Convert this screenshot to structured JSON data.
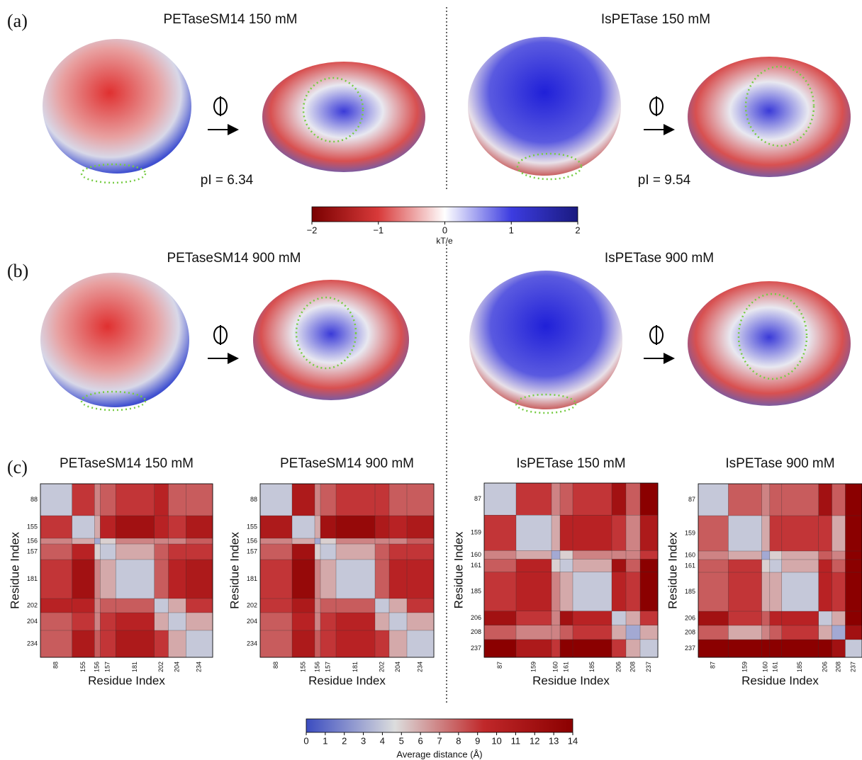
{
  "panels": [
    {
      "label": "(a)",
      "left_title": "PETaseSM14 150 mM",
      "right_title": "IsPETase 150 mM",
      "left_pi": "pI = 6.34",
      "right_pi": "pI = 9.54"
    },
    {
      "label": "(b)",
      "left_title": "PETaseSM14 900 mM",
      "right_title": "IsPETase 900 mM"
    }
  ],
  "electrostatic_colorbar": {
    "label": "kT/e",
    "lim": [
      -2,
      2
    ],
    "ticks": [
      {
        "value": -2,
        "label": "−2"
      },
      {
        "value": -1,
        "label": "−1"
      },
      0,
      1,
      2
    ],
    "colors": [
      "#7a0000",
      "#d83a3a",
      "#ffffff",
      "#3c3ce0",
      "#1a1a80"
    ]
  },
  "heatmaps": {
    "label": "(c)",
    "x_label": "Residue Index",
    "y_label": "Residue Index",
    "maps": [
      {
        "title": "PETaseSM14 150 mM",
        "residues": [
          88,
          155,
          156,
          157,
          181,
          202,
          204,
          234
        ],
        "values": [
          [
            4,
            9,
            7,
            8,
            9,
            10,
            8,
            8
          ],
          [
            9,
            4,
            6,
            10,
            12,
            10,
            9,
            11
          ],
          [
            7,
            6,
            3,
            5,
            7,
            7,
            7,
            8
          ],
          [
            8,
            10,
            5,
            4,
            6,
            8,
            9,
            9
          ],
          [
            9,
            12,
            7,
            6,
            4,
            8,
            10,
            11
          ],
          [
            10,
            10,
            7,
            8,
            8,
            4,
            6,
            9
          ],
          [
            8,
            9,
            7,
            9,
            10,
            6,
            4,
            6
          ],
          [
            8,
            11,
            8,
            9,
            11,
            9,
            6,
            4
          ]
        ]
      },
      {
        "title": "PETaseSM14 900 mM",
        "residues": [
          88,
          155,
          156,
          157,
          181,
          202,
          204,
          234
        ],
        "values": [
          [
            4,
            11,
            7,
            8,
            9,
            9,
            8,
            8
          ],
          [
            11,
            4,
            6,
            12,
            13,
            11,
            10,
            11
          ],
          [
            7,
            6,
            3,
            5,
            7,
            7,
            7,
            8
          ],
          [
            8,
            12,
            5,
            4,
            6,
            8,
            9,
            9
          ],
          [
            9,
            13,
            7,
            6,
            4,
            8,
            10,
            10
          ],
          [
            9,
            11,
            7,
            8,
            8,
            4,
            6,
            9
          ],
          [
            8,
            10,
            7,
            9,
            10,
            6,
            4,
            6
          ],
          [
            8,
            11,
            8,
            9,
            10,
            9,
            6,
            4
          ]
        ]
      },
      {
        "title": "IsPETase 150 mM",
        "residues": [
          87,
          159,
          160,
          161,
          185,
          206,
          208,
          237
        ],
        "values": [
          [
            4,
            9,
            7,
            8,
            9,
            12,
            8,
            14
          ],
          [
            9,
            4,
            6,
            10,
            10,
            9,
            7,
            11
          ],
          [
            7,
            6,
            3,
            5,
            7,
            7,
            7,
            9
          ],
          [
            8,
            10,
            5,
            4,
            6,
            12,
            8,
            14
          ],
          [
            9,
            10,
            7,
            6,
            4,
            10,
            9,
            14
          ],
          [
            12,
            9,
            7,
            12,
            10,
            4,
            6,
            9
          ],
          [
            8,
            7,
            7,
            8,
            9,
            6,
            3,
            6
          ],
          [
            14,
            11,
            9,
            14,
            14,
            9,
            6,
            4
          ]
        ]
      },
      {
        "title": "IsPETase 900 mM",
        "residues": [
          87,
          159,
          160,
          161,
          185,
          206,
          208,
          237
        ],
        "values": [
          [
            4,
            8,
            7,
            8,
            8,
            12,
            8,
            14
          ],
          [
            8,
            4,
            6,
            9,
            9,
            9,
            6,
            14
          ],
          [
            7,
            6,
            3,
            5,
            6,
            8,
            7,
            14
          ],
          [
            8,
            9,
            5,
            4,
            6,
            10,
            8,
            14
          ],
          [
            8,
            9,
            6,
            6,
            4,
            10,
            9,
            14
          ],
          [
            12,
            9,
            8,
            10,
            10,
            4,
            6,
            14
          ],
          [
            8,
            6,
            7,
            8,
            9,
            6,
            3,
            12
          ],
          [
            14,
            14,
            14,
            14,
            14,
            14,
            12,
            4
          ]
        ]
      }
    ]
  },
  "distance_colorbar": {
    "label": "Average distance (Å)",
    "lim": [
      0,
      14
    ],
    "ticks": [
      0,
      1,
      2,
      3,
      4,
      5,
      6,
      7,
      8,
      9,
      10,
      11,
      12,
      13,
      14
    ],
    "colors": [
      "#3b4cc0",
      "#dcdddd",
      "#c0282a",
      "#8b0000"
    ]
  }
}
